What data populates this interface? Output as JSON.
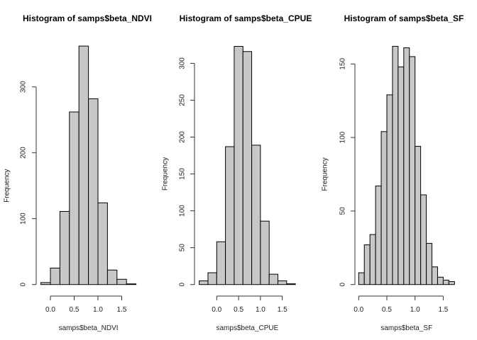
{
  "chart_data": [
    {
      "type": "bar",
      "title": "Histogram of samps$beta_NDVI",
      "xlabel": "samps$beta_NDVI",
      "ylabel": "Frequency",
      "bin_edges": [
        -0.2,
        0.0,
        0.2,
        0.4,
        0.6,
        0.8,
        1.0,
        1.2,
        1.4,
        1.6,
        1.8
      ],
      "values": [
        3,
        25,
        111,
        262,
        362,
        282,
        124,
        22,
        8,
        1
      ],
      "xlim": [
        -0.2,
        1.8
      ],
      "ylim": [
        0,
        362
      ],
      "xticks": [
        0.0,
        0.5,
        1.0,
        1.5
      ],
      "xtick_labels": [
        "0.0",
        "0.5",
        "1.0",
        "1.5"
      ],
      "yticks": [
        0,
        100,
        200,
        300
      ],
      "ytick_labels": [
        "0",
        "100",
        "200",
        "300"
      ],
      "bar_color": "#c8c8c8",
      "grid": false
    },
    {
      "type": "bar",
      "title": "Histogram of samps$beta_CPUE",
      "xlabel": "samps$beta_CPUE",
      "ylabel": "Frequency",
      "bin_edges": [
        -0.4,
        -0.2,
        0.0,
        0.2,
        0.4,
        0.6,
        0.8,
        1.0,
        1.2,
        1.4,
        1.6,
        1.8
      ],
      "values": [
        5,
        16,
        58,
        187,
        323,
        316,
        189,
        86,
        14,
        5,
        1
      ],
      "xlim": [
        -0.4,
        1.8
      ],
      "ylim": [
        0,
        323
      ],
      "xticks": [
        0.0,
        0.5,
        1.0,
        1.5
      ],
      "xtick_labels": [
        "0.0",
        "0.5",
        "1.0",
        "1.5"
      ],
      "yticks": [
        0,
        50,
        100,
        150,
        200,
        250,
        300
      ],
      "ytick_labels": [
        "0",
        "50",
        "100",
        "150",
        "200",
        "250",
        "300"
      ],
      "bar_color": "#c8c8c8",
      "grid": false
    },
    {
      "type": "bar",
      "title": "Histogram of samps$beta_SF",
      "xlabel": "samps$beta_SF",
      "ylabel": "Frequency",
      "bin_edges": [
        0.0,
        0.1,
        0.2,
        0.3,
        0.4,
        0.5,
        0.6,
        0.7,
        0.8,
        0.9,
        1.0,
        1.1,
        1.2,
        1.3,
        1.4,
        1.5,
        1.6,
        1.7
      ],
      "values": [
        8,
        27,
        34,
        67,
        104,
        129,
        162,
        148,
        161,
        155,
        94,
        61,
        28,
        12,
        5,
        3,
        2
      ],
      "xlim": [
        0.0,
        1.7
      ],
      "ylim": [
        0,
        162
      ],
      "xticks": [
        0.0,
        0.5,
        1.0,
        1.5
      ],
      "xtick_labels": [
        "0.0",
        "0.5",
        "1.0",
        "1.5"
      ],
      "yticks": [
        0,
        50,
        100,
        150
      ],
      "ytick_labels": [
        "0",
        "50",
        "100",
        "150"
      ],
      "bar_color": "#c8c8c8",
      "grid": false
    }
  ]
}
